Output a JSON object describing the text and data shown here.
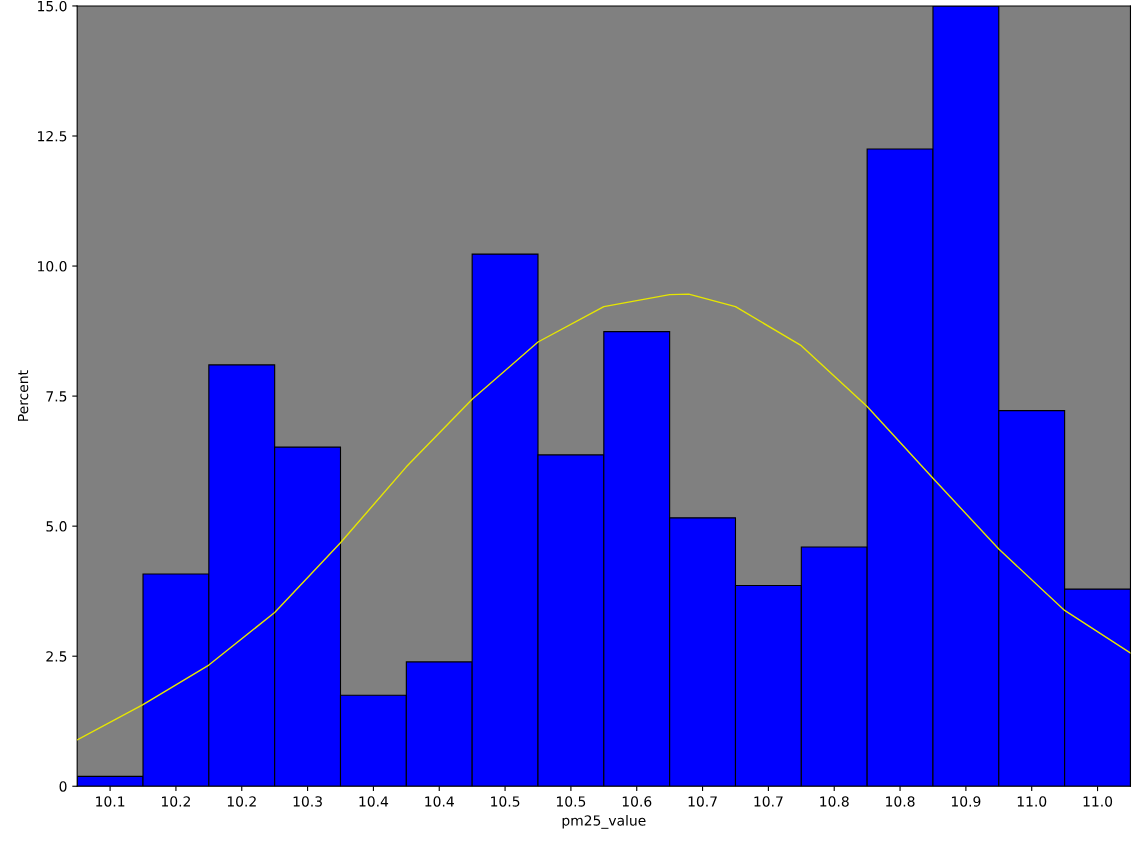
{
  "chart_data": {
    "type": "histogram",
    "xlabel": "pm25_value",
    "ylabel": "Percent",
    "bins": [
      10.074,
      10.136,
      10.198,
      10.26,
      10.322,
      10.384,
      10.446,
      10.508,
      10.57,
      10.632,
      10.694,
      10.756,
      10.818,
      10.88,
      10.942,
      11.004,
      11.066
    ],
    "values": [
      0.19,
      4.08,
      8.1,
      6.52,
      1.75,
      2.39,
      10.23,
      6.37,
      8.74,
      5.16,
      3.86,
      4.6,
      12.25,
      15.0,
      7.22,
      3.79
    ],
    "color": "#0000ff",
    "series": [
      {
        "type": "line",
        "color": "#e6e600",
        "x": [
          10.074,
          10.136,
          10.198,
          10.26,
          10.322,
          10.384,
          10.446,
          10.508,
          10.57,
          10.632,
          10.65,
          10.694,
          10.756,
          10.818,
          10.88,
          10.942,
          11.004,
          11.066
        ],
        "values": [
          0.89,
          1.57,
          2.33,
          3.34,
          4.68,
          6.14,
          7.44,
          8.54,
          9.22,
          9.45,
          9.46,
          9.22,
          8.47,
          7.3,
          5.92,
          4.56,
          3.38,
          2.56
        ]
      }
    ],
    "xlim": [
      10.074,
      11.066
    ],
    "ylim": [
      0,
      15
    ],
    "xticks": [
      {
        "value": 10.105,
        "label": "10.1"
      },
      {
        "value": 10.167,
        "label": "10.2"
      },
      {
        "value": 10.229,
        "label": "10.2"
      },
      {
        "value": 10.291,
        "label": "10.3"
      },
      {
        "value": 10.353,
        "label": "10.4"
      },
      {
        "value": 10.415,
        "label": "10.4"
      },
      {
        "value": 10.477,
        "label": "10.5"
      },
      {
        "value": 10.539,
        "label": "10.5"
      },
      {
        "value": 10.601,
        "label": "10.6"
      },
      {
        "value": 10.663,
        "label": "10.7"
      },
      {
        "value": 10.725,
        "label": "10.7"
      },
      {
        "value": 10.787,
        "label": "10.8"
      },
      {
        "value": 10.849,
        "label": "10.8"
      },
      {
        "value": 10.911,
        "label": "10.9"
      },
      {
        "value": 10.973,
        "label": "11.0"
      },
      {
        "value": 11.035,
        "label": "11.0"
      }
    ],
    "yticks": [
      0,
      {
        "value": 2.5,
        "label": "2.5"
      },
      {
        "value": 5,
        "label": "5.0"
      },
      {
        "value": 7.5,
        "label": "7.5"
      },
      {
        "value": 10,
        "label": "10.0"
      },
      {
        "value": 12.5,
        "label": "12.5"
      },
      {
        "value": 15,
        "label": "15.0"
      }
    ],
    "grid": false,
    "legend": false
  }
}
